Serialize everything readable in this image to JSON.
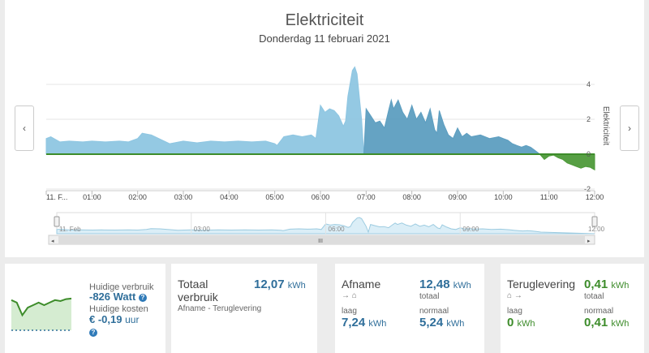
{
  "header": {
    "title": "Elektriciteit",
    "date": "Donderdag 11 februari 2021"
  },
  "nav": {
    "prev": "‹",
    "next": "›"
  },
  "chart_data": {
    "type": "area",
    "ylabel": "Elektriciteit",
    "yticks": [
      4,
      2,
      0,
      -2
    ],
    "ylim": [
      -2.2,
      5
    ],
    "x_tick_labels": [
      "11. F...",
      "01:00",
      "02:00",
      "03:00",
      "04:00",
      "05:00",
      "06:00",
      "07:00",
      "08:00",
      "09:00",
      "10:00",
      "11:00",
      "12:00"
    ],
    "x_hours": [
      0,
      1,
      2,
      3,
      4,
      5,
      6,
      7,
      8,
      9,
      10,
      11,
      12
    ],
    "series": [
      {
        "color": "#8ec6e2",
        "x": [
          0,
          0.1,
          0.3,
          0.5,
          0.8,
          1.0,
          1.3,
          1.6,
          1.8,
          2.0,
          2.1,
          2.3,
          2.5,
          2.7,
          3.0,
          3.3,
          3.6,
          3.9,
          4.2,
          4.5,
          4.8,
          5.0,
          5.05,
          5.2,
          5.4,
          5.6,
          5.8,
          5.9,
          6.0,
          6.1,
          6.2,
          6.3,
          6.4,
          6.5,
          6.55,
          6.6,
          6.7,
          6.75,
          6.8,
          6.9,
          6.95
        ],
        "y": [
          0.9,
          1.0,
          0.7,
          0.75,
          0.7,
          0.75,
          0.7,
          0.75,
          0.7,
          0.9,
          1.2,
          1.1,
          0.85,
          0.6,
          0.75,
          0.65,
          0.75,
          0.7,
          0.75,
          0.7,
          0.75,
          0.6,
          0.5,
          1.0,
          1.1,
          1.0,
          1.1,
          0.9,
          2.8,
          2.4,
          2.6,
          2.5,
          2.2,
          1.6,
          1.9,
          3.3,
          4.8,
          5.0,
          4.6,
          2.0,
          0
        ]
      },
      {
        "color": "#5d9ec0",
        "x": [
          6.95,
          7.0,
          7.1,
          7.2,
          7.3,
          7.4,
          7.5,
          7.55,
          7.6,
          7.7,
          7.8,
          7.9,
          8.0,
          8.1,
          8.2,
          8.3,
          8.4,
          8.5,
          8.55,
          8.6,
          8.7,
          8.8,
          8.9,
          9.0,
          9.1,
          9.2,
          9.3,
          9.5,
          9.7,
          9.9,
          10.0,
          10.1,
          10.2,
          10.3,
          10.4,
          10.5,
          10.6,
          10.7,
          10.8
        ],
        "y": [
          0,
          2.6,
          2.2,
          1.8,
          1.9,
          1.5,
          2.6,
          3.1,
          2.6,
          3.1,
          2.4,
          2.0,
          2.8,
          2.0,
          2.4,
          1.8,
          2.6,
          1.4,
          1.2,
          2.5,
          1.7,
          1.1,
          0.9,
          1.5,
          1.0,
          1.2,
          1.0,
          1.1,
          0.9,
          1.0,
          0.9,
          0.8,
          0.6,
          0.5,
          0.4,
          0.5,
          0.4,
          0.2,
          0
        ]
      },
      {
        "color": "#4e9a3a",
        "x": [
          10.8,
          10.9,
          11.0,
          11.1,
          11.2,
          11.3,
          11.4,
          11.5,
          11.6,
          11.7,
          11.8,
          11.9,
          12.0
        ],
        "y": [
          0,
          -0.3,
          -0.1,
          -0.05,
          -0.2,
          -0.3,
          -0.5,
          -0.6,
          -0.7,
          -0.8,
          -0.7,
          -0.75,
          -0.9
        ]
      }
    ],
    "navigator": {
      "labels": [
        "11. Feb",
        "03:00",
        "06:00",
        "09:00",
        "12:00"
      ],
      "label_hours": [
        0,
        3,
        6,
        9,
        12
      ],
      "handle_glyph": "III"
    }
  },
  "current": {
    "usage_label": "Huidige verbruik",
    "usage_value": "-826 Watt",
    "cost_label": "Huidige kosten",
    "cost_value": "€ -0,19",
    "cost_unit": "uur",
    "sparkline": [
      0.6,
      0.55,
      0.3,
      0.45,
      0.5,
      0.55,
      0.5,
      0.55,
      0.6,
      0.58,
      0.62,
      0.63
    ]
  },
  "totaal": {
    "title_line1": "Totaal",
    "title_line2": "verbruik",
    "value": "12,07",
    "unit": "kWh",
    "formula": "Afname - Teruglevering"
  },
  "afname": {
    "title": "Afname",
    "total_value": "12,48",
    "total_unit": "kWh",
    "total_label": "totaal",
    "low_label": "laag",
    "low_value": "7,24",
    "low_unit": "kWh",
    "normal_label": "normaal",
    "normal_value": "5,24",
    "normal_unit": "kWh",
    "arrows": "→ ⌂"
  },
  "teruglevering": {
    "title": "Teruglevering",
    "total_value": "0,41",
    "total_unit": "kWh",
    "total_label": "totaal",
    "low_label": "laag",
    "low_value": "0",
    "low_unit": "kWh",
    "normal_label": "normaal",
    "normal_value": "0,41",
    "normal_unit": "kWh",
    "arrows": "⌂ →"
  },
  "icons": {
    "help": "?"
  }
}
